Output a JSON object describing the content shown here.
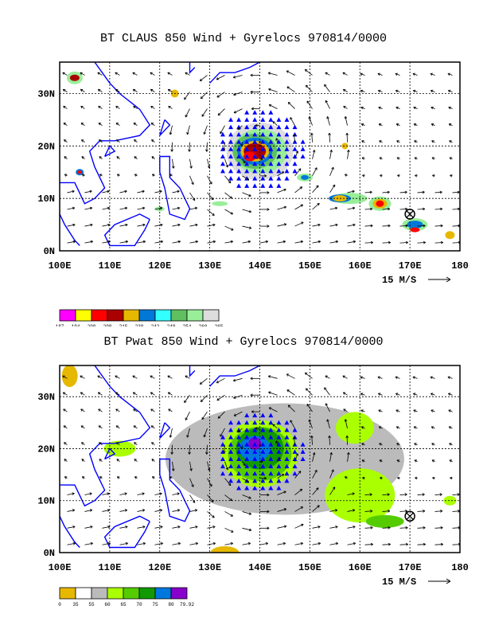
{
  "panels": [
    {
      "title": "BT CLAUS 850 Wind + Gyrelocs 970814/0000",
      "lat_labels": [
        "30N",
        "20N",
        "10N",
        "0N"
      ],
      "lon_labels": [
        "100E",
        "110E",
        "120E",
        "130E",
        "140E",
        "150E",
        "160E",
        "170E",
        "180"
      ],
      "vector_scale_label": "15 M/S",
      "colorbar_values": [
        "187",
        "194",
        "200",
        "208",
        "215",
        "230",
        "242",
        "248",
        "254",
        "260",
        "265"
      ],
      "colorbar_colors": [
        "#ff00ff",
        "#ffff00",
        "#ff0000",
        "#aa0000",
        "#e6b800",
        "#0078d7",
        "#33ffff",
        "#60c060",
        "#99ee99",
        "#dddddd"
      ]
    },
    {
      "title": "BT Pwat 850 Wind + Gyrelocs 970814/0000",
      "lat_labels": [
        "30N",
        "20N",
        "10N",
        "0N"
      ],
      "lon_labels": [
        "100E",
        "110E",
        "120E",
        "130E",
        "140E",
        "150E",
        "160E",
        "170E",
        "180"
      ],
      "vector_scale_label": "15 M/S",
      "colorbar_values": [
        "0",
        "35",
        "55",
        "60",
        "65",
        "70",
        "75",
        "80",
        "79.92"
      ],
      "colorbar_colors": [
        "#e6b800",
        "#ffffff",
        "#bbbbbb",
        "#aaff00",
        "#55cc00",
        "#119900",
        "#0077dd",
        "#8800cc"
      ]
    }
  ],
  "map_extent": {
    "lon_min": 100,
    "lon_max": 180,
    "lat_min": 0,
    "lat_max": 36
  },
  "gyre_center": {
    "lon": 140,
    "lat": 20
  },
  "gyre_marker_location": {
    "lon": 170,
    "lat": 7
  },
  "colors": {
    "coastline": "#0000ff",
    "markers": "#0000ff",
    "gridline": "#000000"
  }
}
